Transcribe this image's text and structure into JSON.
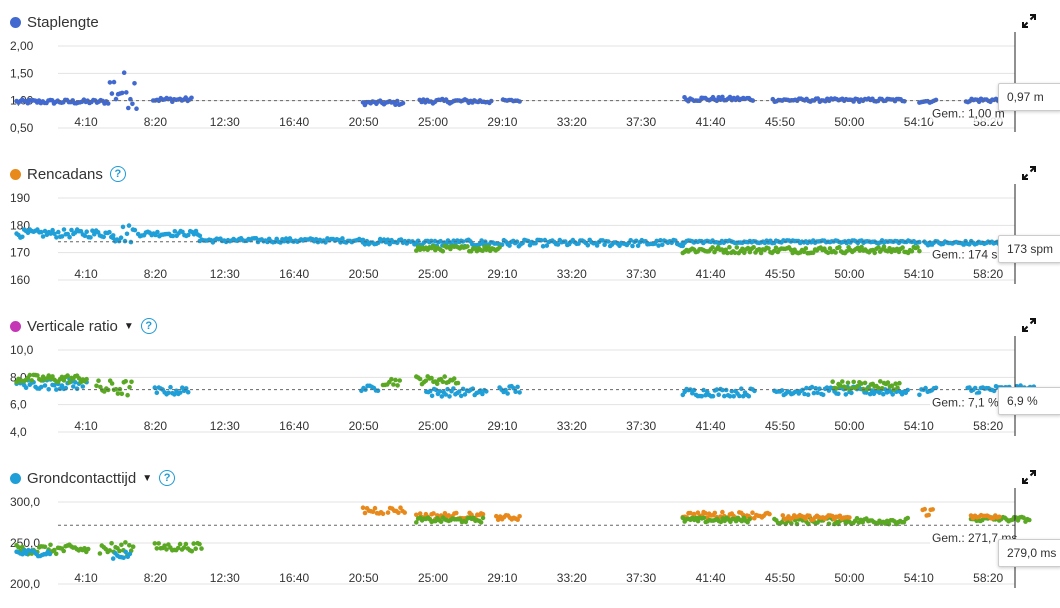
{
  "colors": {
    "blue": "#4169cf",
    "orange": "#e8891c",
    "magenta": "#c536b7",
    "lightblue": "#1f9fd8",
    "green": "#5aa823",
    "grid": "#e3e3e3",
    "avg_line": "#666666"
  },
  "x_ticks": [
    "4:10",
    "8:20",
    "12:30",
    "16:40",
    "20:50",
    "25:00",
    "29:10",
    "33:20",
    "37:30",
    "41:40",
    "45:50",
    "50:00",
    "54:10",
    "58:20"
  ],
  "icons": {
    "expand": "expand-icon",
    "help": "help-icon",
    "dropdown": "chevron-down-icon"
  },
  "charts": [
    {
      "title": "Staplengte",
      "dot_color": "#4169cf",
      "has_help": false,
      "has_dropdown": false,
      "y_ticks": [
        "2,00",
        "1,50",
        "1,00",
        "0,50"
      ],
      "y_values": [
        2.0,
        1.5,
        1.0,
        0.5
      ],
      "avg_label": "Gem.: 1,00 m",
      "current_value": "0,97 m"
    },
    {
      "title": "Rencadans",
      "dot_color": "#e8891c",
      "has_help": true,
      "has_dropdown": false,
      "y_ticks": [
        "190",
        "180",
        "170",
        "160"
      ],
      "y_values": [
        190,
        180,
        170,
        160
      ],
      "avg_label": "Gem.: 174 spm",
      "current_value": "173 spm"
    },
    {
      "title": "Verticale ratio",
      "dot_color": "#c536b7",
      "has_help": true,
      "has_dropdown": true,
      "y_ticks": [
        "10,0",
        "8,0",
        "6,0",
        "4,0"
      ],
      "y_values": [
        10.0,
        8.0,
        6.0,
        4.0
      ],
      "avg_label": "Gem.: 7,1 %",
      "current_value": "6,9 %"
    },
    {
      "title": "Grondcontacttijd",
      "dot_color": "#1f9fd8",
      "has_help": true,
      "has_dropdown": true,
      "y_ticks": [
        "300,0",
        "250,0",
        "200,0"
      ],
      "y_values": [
        300.0,
        250.0,
        200.0
      ],
      "avg_label": "Gem.: 271,7 ms",
      "current_value": "279,0 ms"
    }
  ],
  "chart_data": [
    {
      "type": "scatter",
      "title": "Staplengte",
      "x_unit": "min:sec",
      "ylim": [
        0.5,
        2.0
      ],
      "avg": 1.0,
      "segments": [
        {
          "x": [
            0,
            5.5
          ],
          "y": 0.98,
          "spread": 0.04,
          "color": "blue"
        },
        {
          "x": [
            5.6,
            7.2
          ],
          "y": 1.2,
          "spread": 0.35,
          "color": "blue"
        },
        {
          "x": [
            8.2,
            10.5
          ],
          "y": 1.02,
          "spread": 0.04,
          "color": "blue"
        },
        {
          "x": [
            20.8,
            23.2
          ],
          "y": 0.96,
          "spread": 0.04,
          "color": "blue"
        },
        {
          "x": [
            24.2,
            28.5
          ],
          "y": 0.99,
          "spread": 0.04,
          "color": "blue"
        },
        {
          "x": [
            29.2,
            30.2
          ],
          "y": 1.0,
          "spread": 0.02,
          "color": "blue"
        },
        {
          "x": [
            40.1,
            44.2
          ],
          "y": 1.03,
          "spread": 0.04,
          "color": "blue"
        },
        {
          "x": [
            45.4,
            53.3
          ],
          "y": 1.01,
          "spread": 0.03,
          "color": "blue"
        },
        {
          "x": [
            54.2,
            55.2
          ],
          "y": 0.99,
          "spread": 0.03,
          "color": "blue"
        },
        {
          "x": [
            57.0,
            61.5
          ],
          "y": 1.01,
          "spread": 0.04,
          "color": "blue"
        }
      ],
      "current": 0.97
    },
    {
      "type": "scatter",
      "title": "Rencadans",
      "x_unit": "min:sec",
      "ylim": [
        160,
        190
      ],
      "avg": 174,
      "segments": [
        {
          "x": [
            0,
            5.8
          ],
          "y": 177,
          "spread": 1.5,
          "color": "lightblue"
        },
        {
          "x": [
            5.8,
            7.1
          ],
          "y": 177,
          "spread": 3.5,
          "color": "lightblue"
        },
        {
          "x": [
            7.3,
            11.0
          ],
          "y": 177,
          "spread": 1.0,
          "color": "lightblue"
        },
        {
          "x": [
            11.0,
            20.8
          ],
          "y": 174.5,
          "spread": 0.8,
          "color": "lightblue"
        },
        {
          "x": [
            20.8,
            24.0
          ],
          "y": 174,
          "spread": 1.0,
          "color": "lightblue"
        },
        {
          "x": [
            24.0,
            40.0
          ],
          "y": 173.5,
          "spread": 1.2,
          "color": "lightblue"
        },
        {
          "x": [
            24.0,
            29.0
          ],
          "y": 171.5,
          "spread": 1.0,
          "color": "green"
        },
        {
          "x": [
            40.0,
            54.2
          ],
          "y": 171,
          "spread": 1.2,
          "color": "green"
        },
        {
          "x": [
            40.0,
            54.2
          ],
          "y": 174,
          "spread": 0.5,
          "color": "lightblue"
        },
        {
          "x": [
            54.5,
            60.8
          ],
          "y": 173.5,
          "spread": 0.8,
          "color": "lightblue"
        }
      ],
      "current": 173
    },
    {
      "type": "scatter",
      "title": "Verticale ratio",
      "x_unit": "min:sec",
      "ylim": [
        4.0,
        10.0
      ],
      "avg": 7.1,
      "segments": [
        {
          "x": [
            0,
            4.2
          ],
          "y": 7.5,
          "spread": 0.4,
          "color": "lightblue"
        },
        {
          "x": [
            0,
            4.2
          ],
          "y": 7.9,
          "spread": 0.3,
          "color": "green"
        },
        {
          "x": [
            4.8,
            6.9
          ],
          "y": 7.2,
          "spread": 0.6,
          "color": "green"
        },
        {
          "x": [
            8.3,
            10.3
          ],
          "y": 7.0,
          "spread": 0.3,
          "color": "lightblue"
        },
        {
          "x": [
            20.7,
            21.7
          ],
          "y": 7.2,
          "spread": 0.2,
          "color": "lightblue"
        },
        {
          "x": [
            22.0,
            23.0
          ],
          "y": 7.7,
          "spread": 0.3,
          "color": "green"
        },
        {
          "x": [
            24.0,
            26.5
          ],
          "y": 7.8,
          "spread": 0.3,
          "color": "green"
        },
        {
          "x": [
            24.6,
            28.2
          ],
          "y": 6.9,
          "spread": 0.3,
          "color": "lightblue"
        },
        {
          "x": [
            29.0,
            30.2
          ],
          "y": 7.1,
          "spread": 0.3,
          "color": "lightblue"
        },
        {
          "x": [
            40.0,
            44.3
          ],
          "y": 6.9,
          "spread": 0.3,
          "color": "lightblue"
        },
        {
          "x": [
            45.5,
            53.5
          ],
          "y": 7.0,
          "spread": 0.3,
          "color": "lightblue"
        },
        {
          "x": [
            49.0,
            53.0
          ],
          "y": 7.4,
          "spread": 0.3,
          "color": "green"
        },
        {
          "x": [
            54.2,
            55.2
          ],
          "y": 7.0,
          "spread": 0.3,
          "color": "lightblue"
        },
        {
          "x": [
            57.1,
            61.3
          ],
          "y": 7.1,
          "spread": 0.3,
          "color": "lightblue"
        }
      ],
      "current": 6.9
    },
    {
      "type": "scatter",
      "title": "Grondcontacttijd",
      "x_unit": "min:sec",
      "ylim": [
        200,
        300
      ],
      "avg": 271.7,
      "segments": [
        {
          "x": [
            0,
            4.3
          ],
          "y": 242,
          "spread": 6,
          "color": "green"
        },
        {
          "x": [
            0,
            2.0
          ],
          "y": 238,
          "spread": 4,
          "color": "lightblue"
        },
        {
          "x": [
            5.0,
            7.0
          ],
          "y": 243,
          "spread": 8,
          "color": "green"
        },
        {
          "x": [
            5.8,
            6.8
          ],
          "y": 236,
          "spread": 6,
          "color": "lightblue"
        },
        {
          "x": [
            8.3,
            11.1
          ],
          "y": 245,
          "spread": 5,
          "color": "green"
        },
        {
          "x": [
            20.8,
            22.0
          ],
          "y": 290,
          "spread": 5,
          "color": "orange"
        },
        {
          "x": [
            22.3,
            23.3
          ],
          "y": 290,
          "spread": 4,
          "color": "orange"
        },
        {
          "x": [
            24.0,
            28.0
          ],
          "y": 283,
          "spread": 4,
          "color": "orange"
        },
        {
          "x": [
            24.0,
            28.0
          ],
          "y": 278,
          "spread": 3,
          "color": "green"
        },
        {
          "x": [
            28.8,
            30.2
          ],
          "y": 281,
          "spread": 3,
          "color": "orange"
        },
        {
          "x": [
            40.0,
            45.2
          ],
          "y": 284,
          "spread": 4,
          "color": "orange"
        },
        {
          "x": [
            40.0,
            44.0
          ],
          "y": 278,
          "spread": 3,
          "color": "green"
        },
        {
          "x": [
            45.5,
            53.5
          ],
          "y": 277,
          "spread": 4,
          "color": "green"
        },
        {
          "x": [
            46.0,
            50.0
          ],
          "y": 281,
          "spread": 3,
          "color": "orange"
        },
        {
          "x": [
            54.4,
            55.0
          ],
          "y": 288,
          "spread": 5,
          "color": "orange"
        },
        {
          "x": [
            57.3,
            60.8
          ],
          "y": 279,
          "spread": 3,
          "color": "green"
        },
        {
          "x": [
            57.3,
            59.0
          ],
          "y": 282,
          "spread": 2,
          "color": "orange"
        }
      ],
      "current": 279.0
    }
  ]
}
